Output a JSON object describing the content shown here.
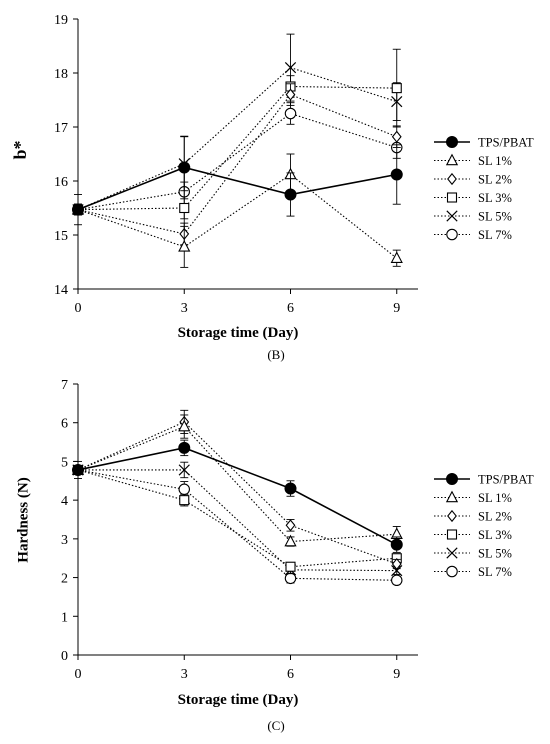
{
  "chart_data": [
    {
      "type": "line",
      "panel_label": "(B)",
      "xlabel": "Storage time (Day)",
      "ylabel": "b*",
      "x": [
        0,
        3,
        6,
        9
      ],
      "xlim": [
        0,
        9.6
      ],
      "ylim": [
        14,
        19
      ],
      "yticks": [
        14,
        15,
        16,
        17,
        18,
        19
      ],
      "xticks": [
        0,
        3,
        6,
        9
      ],
      "grid": false,
      "legend_position": "right",
      "series": [
        {
          "name": "TPS/PBAT",
          "marker": "filled-circle",
          "line": "solid",
          "values": [
            15.47,
            16.25,
            15.75,
            16.12
          ],
          "err": [
            0.28,
            0.58,
            0.4,
            0.55
          ]
        },
        {
          "name": "SL 1%",
          "marker": "triangle",
          "line": "dotted",
          "values": [
            15.47,
            14.78,
            16.12,
            14.57
          ],
          "err": [
            0.1,
            0.38,
            0.38,
            0.15
          ]
        },
        {
          "name": "SL 2%",
          "marker": "diamond",
          "line": "dotted",
          "values": [
            15.47,
            15.02,
            17.6,
            16.82
          ],
          "err": [
            0.1,
            0.2,
            0.2,
            0.2
          ]
        },
        {
          "name": "SL 3%",
          "marker": "square",
          "line": "dotted",
          "values": [
            15.47,
            15.5,
            17.75,
            17.72
          ],
          "err": [
            0.1,
            0.48,
            0.2,
            0.72
          ]
        },
        {
          "name": "SL 5%",
          "marker": "x",
          "line": "dotted",
          "values": [
            15.47,
            16.32,
            18.1,
            17.47
          ],
          "err": [
            0.1,
            0.5,
            0.62,
            0.35
          ]
        },
        {
          "name": "SL 7%",
          "marker": "circle",
          "line": "dotted",
          "values": [
            15.47,
            15.8,
            17.25,
            16.62
          ],
          "err": [
            0.1,
            0.5,
            0.2,
            0.2
          ]
        }
      ]
    },
    {
      "type": "line",
      "panel_label": "(C)",
      "xlabel": "Storage time (Day)",
      "ylabel": "Hardness (N)",
      "x": [
        0,
        3,
        6,
        9
      ],
      "xlim": [
        0,
        9.6
      ],
      "ylim": [
        0,
        7
      ],
      "yticks": [
        0,
        1,
        2,
        3,
        4,
        5,
        6,
        7
      ],
      "xticks": [
        0,
        3,
        6,
        9
      ],
      "grid": false,
      "legend_position": "right",
      "series": [
        {
          "name": "TPS/PBAT",
          "marker": "filled-circle",
          "line": "solid",
          "values": [
            4.78,
            5.35,
            4.3,
            2.85
          ],
          "err": [
            0.22,
            0.2,
            0.2,
            0.2
          ]
        },
        {
          "name": "SL 1%",
          "marker": "triangle",
          "line": "dotted",
          "values": [
            4.78,
            5.9,
            2.93,
            3.12
          ],
          "err": [
            0.1,
            0.3,
            0.12,
            0.2
          ]
        },
        {
          "name": "SL 2%",
          "marker": "diamond",
          "line": "dotted",
          "values": [
            4.78,
            6.02,
            3.35,
            2.35
          ],
          "err": [
            0.1,
            0.3,
            0.15,
            0.12
          ]
        },
        {
          "name": "SL 3%",
          "marker": "square",
          "line": "dotted",
          "values": [
            4.78,
            4.0,
            2.28,
            2.5
          ],
          "err": [
            0.1,
            0.15,
            0.1,
            0.1
          ]
        },
        {
          "name": "SL 5%",
          "marker": "x",
          "line": "dotted",
          "values": [
            4.78,
            4.78,
            2.2,
            2.18
          ],
          "err": [
            0.1,
            0.2,
            0.1,
            0.1
          ]
        },
        {
          "name": "SL 7%",
          "marker": "circle",
          "line": "dotted",
          "values": [
            4.78,
            4.28,
            1.98,
            1.93
          ],
          "err": [
            0.1,
            0.2,
            0.12,
            0.1
          ]
        }
      ]
    }
  ]
}
